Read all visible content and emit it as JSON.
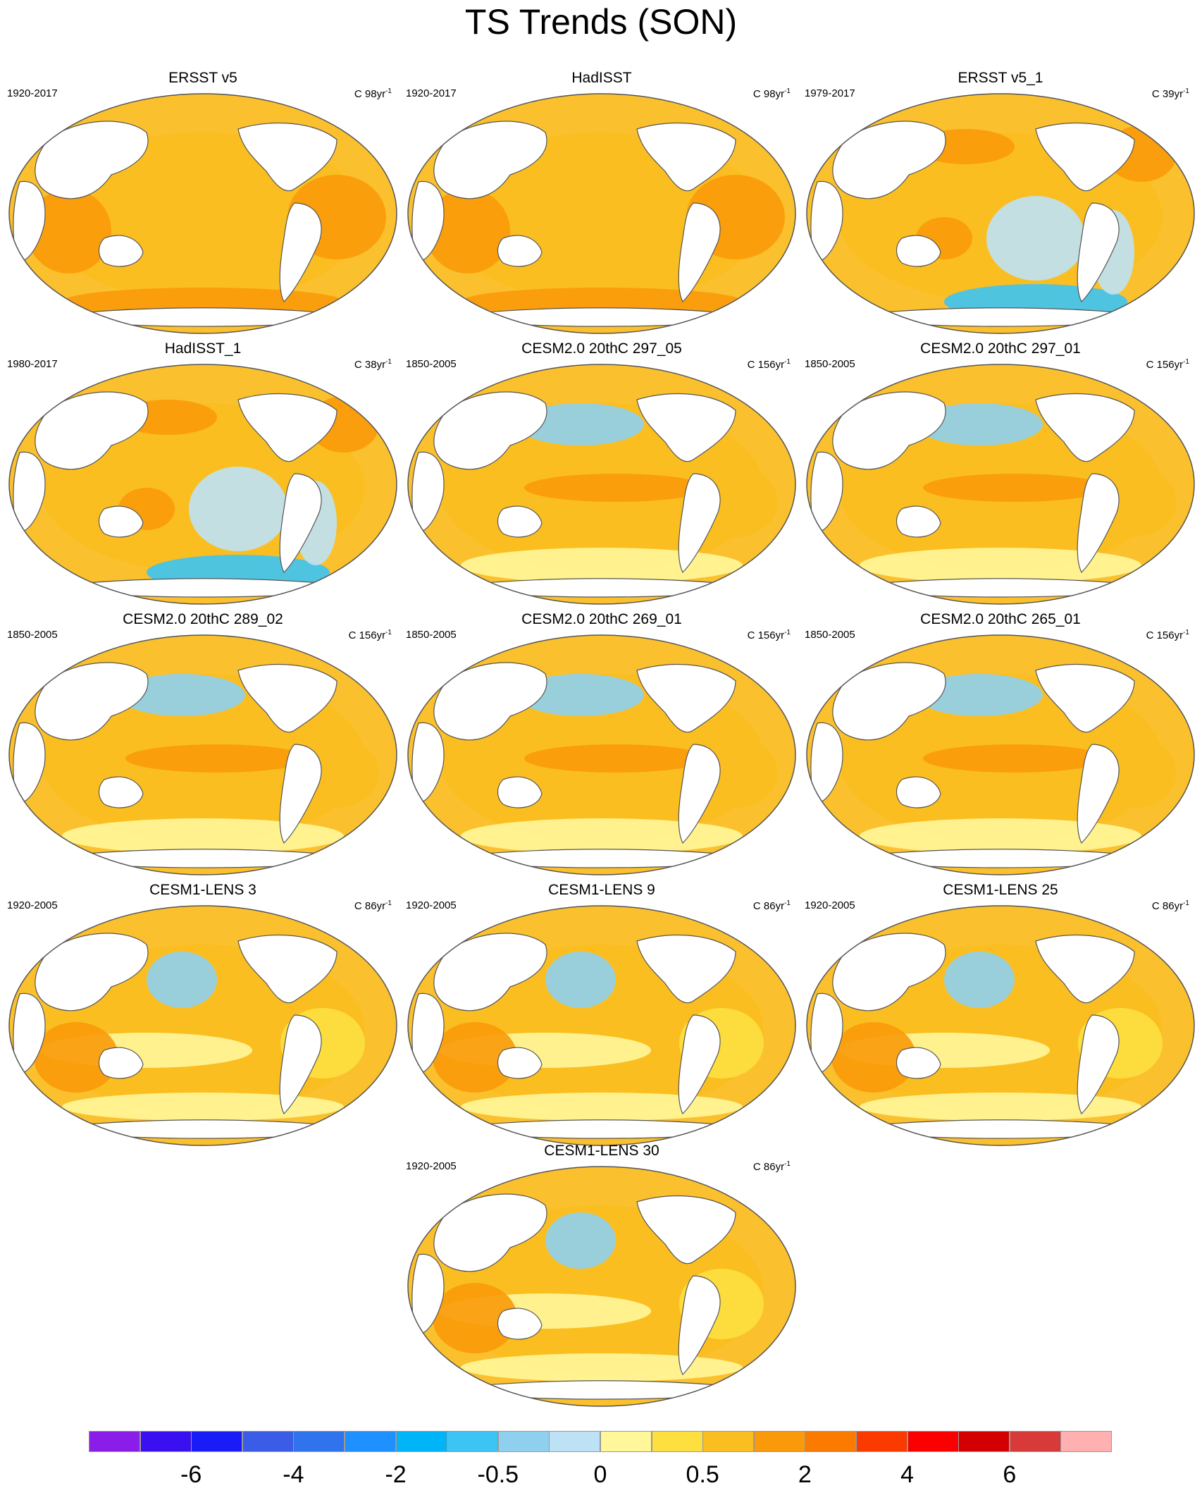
{
  "title": "TS Trends (SON)",
  "palette": {
    "ocean_base": "#fbc02d",
    "land": "#ffffff",
    "coast": "#555555",
    "frame": "#555555"
  },
  "panels": [
    {
      "title": "ERSST v5",
      "period": "1920-2017",
      "units_prefix": "C 98yr",
      "units_exp": "-1",
      "pattern": "warm"
    },
    {
      "title": "HadISST",
      "period": "1920-2017",
      "units_prefix": "C 98yr",
      "units_exp": "-1",
      "pattern": "warm"
    },
    {
      "title": "ERSST v5_1",
      "period": "1979-2017",
      "units_prefix": "C 39yr",
      "units_exp": "-1",
      "pattern": "lanina"
    },
    {
      "title": "HadISST_1",
      "period": "1980-2017",
      "units_prefix": "C 38yr",
      "units_exp": "-1",
      "pattern": "lanina"
    },
    {
      "title": "CESM2.0 20thC 297_05",
      "period": "1850-2005",
      "units_prefix": "C 156yr",
      "units_exp": "-1",
      "pattern": "npac"
    },
    {
      "title": "CESM2.0 20thC 297_01",
      "period": "1850-2005",
      "units_prefix": "C 156yr",
      "units_exp": "-1",
      "pattern": "npac"
    },
    {
      "title": "CESM2.0 20thC 289_02",
      "period": "1850-2005",
      "units_prefix": "C 156yr",
      "units_exp": "-1",
      "pattern": "npac"
    },
    {
      "title": "CESM2.0 20thC 269_01",
      "period": "1850-2005",
      "units_prefix": "C 156yr",
      "units_exp": "-1",
      "pattern": "npac"
    },
    {
      "title": "CESM2.0 20thC 265_01",
      "period": "1850-2005",
      "units_prefix": "C 156yr",
      "units_exp": "-1",
      "pattern": "npac"
    },
    {
      "title": "CESM1-LENS 3",
      "period": "1920-2005",
      "units_prefix": "C 86yr",
      "units_exp": "-1",
      "pattern": "lens"
    },
    {
      "title": "CESM1-LENS 9",
      "period": "1920-2005",
      "units_prefix": "C 86yr",
      "units_exp": "-1",
      "pattern": "lens"
    },
    {
      "title": "CESM1-LENS 25",
      "period": "1920-2005",
      "units_prefix": "C 86yr",
      "units_exp": "-1",
      "pattern": "lens"
    },
    {
      "title": "CESM1-LENS 30",
      "period": "1920-2005",
      "units_prefix": "C 86yr",
      "units_exp": "-1",
      "pattern": "lens"
    }
  ],
  "colorbar": {
    "colors": [
      "#8a1ee8",
      "#3a10f0",
      "#1a1cf8",
      "#3b5ce6",
      "#2f74ec",
      "#1e90ff",
      "#00b4f8",
      "#3cc4f4",
      "#8ed0ee",
      "#bde2f6",
      "#fff79a",
      "#fde040",
      "#fbbe20",
      "#fa9a0a",
      "#fb7a00",
      "#fb3a00",
      "#fb0000",
      "#d20000",
      "#d83a3a",
      "#ffb0b0"
    ],
    "labels": [
      {
        "text": "-6",
        "index": 2
      },
      {
        "text": "-4",
        "index": 4
      },
      {
        "text": "-2",
        "index": 6
      },
      {
        "text": "-0.5",
        "index": 8
      },
      {
        "text": "0",
        "index": 10
      },
      {
        "text": "0.5",
        "index": 12
      },
      {
        "text": "2",
        "index": 14
      },
      {
        "text": "4",
        "index": 16
      },
      {
        "text": "6",
        "index": 18
      }
    ]
  }
}
